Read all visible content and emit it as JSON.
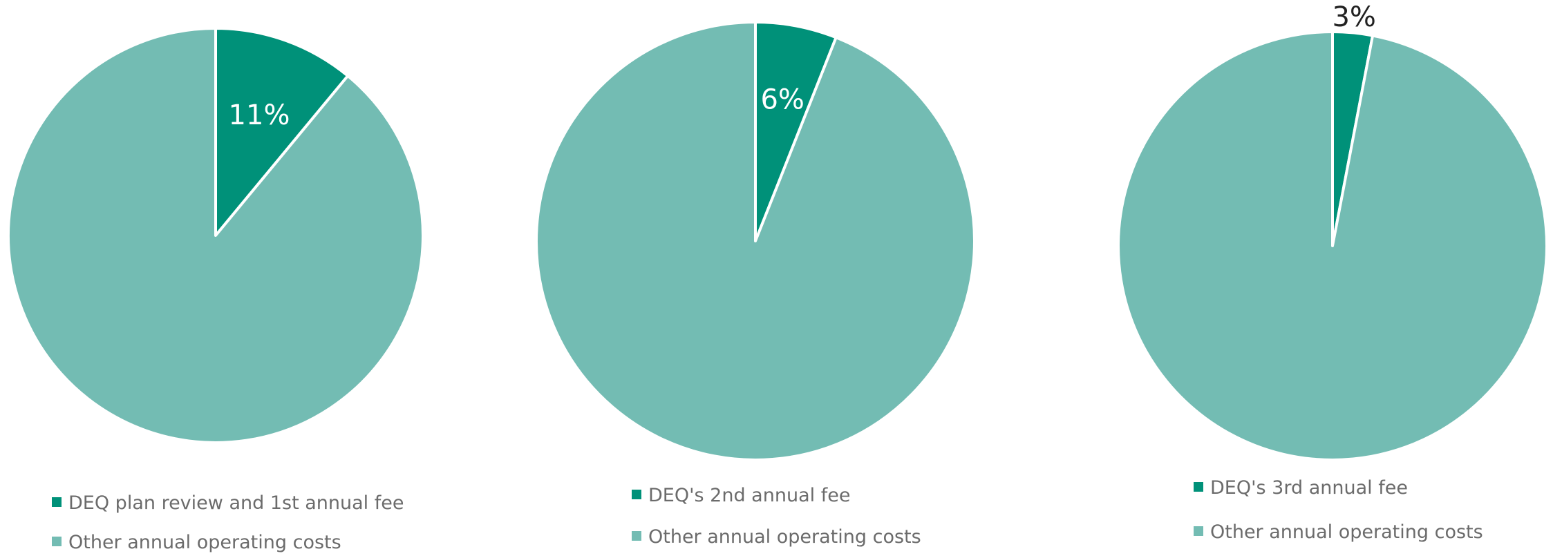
{
  "colors": {
    "fee": "#009179",
    "other": "#73bcb3",
    "label_inside": "#ffffff",
    "label_outside": "#222222",
    "legend_text": "#6b6b6b"
  },
  "chart_data": [
    {
      "type": "pie",
      "slices": [
        {
          "label": "DEQ plan review and 1st annual fee",
          "value": 11,
          "data_label": "11%"
        },
        {
          "label": "Other annual operating costs",
          "value": 89,
          "data_label": ""
        }
      ],
      "legend_position": "bottom"
    },
    {
      "type": "pie",
      "slices": [
        {
          "label": "DEQ's 2nd annual fee",
          "value": 6,
          "data_label": "6%"
        },
        {
          "label": "Other annual operating costs",
          "value": 94,
          "data_label": ""
        }
      ],
      "legend_position": "bottom"
    },
    {
      "type": "pie",
      "slices": [
        {
          "label": "DEQ's 3rd annual fee",
          "value": 3,
          "data_label": "3%"
        },
        {
          "label": "Other annual operating costs",
          "value": 97,
          "data_label": ""
        }
      ],
      "legend_position": "bottom"
    }
  ]
}
